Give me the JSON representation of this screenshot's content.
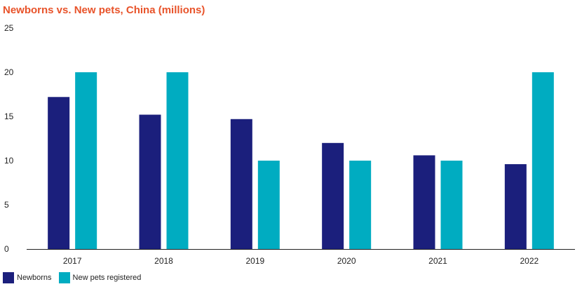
{
  "chart_data": {
    "type": "bar",
    "title": "Newborns vs. New pets, China (millions)",
    "xlabel": "",
    "ylabel": "",
    "categories": [
      "2017",
      "2018",
      "2019",
      "2020",
      "2021",
      "2022"
    ],
    "ylim": [
      0,
      25
    ],
    "yticks": [
      "0",
      "5",
      "10",
      "15",
      "20",
      "25"
    ],
    "grid": false,
    "legend_position": "bottom-left",
    "series": [
      {
        "name": "Newborns",
        "color": "#1b1f7c",
        "values": [
          17.2,
          15.2,
          14.7,
          12.0,
          10.6,
          9.6
        ]
      },
      {
        "name": "New pets registered",
        "color": "#00acc1",
        "values": [
          20,
          20,
          10,
          10,
          10,
          20
        ]
      }
    ]
  }
}
